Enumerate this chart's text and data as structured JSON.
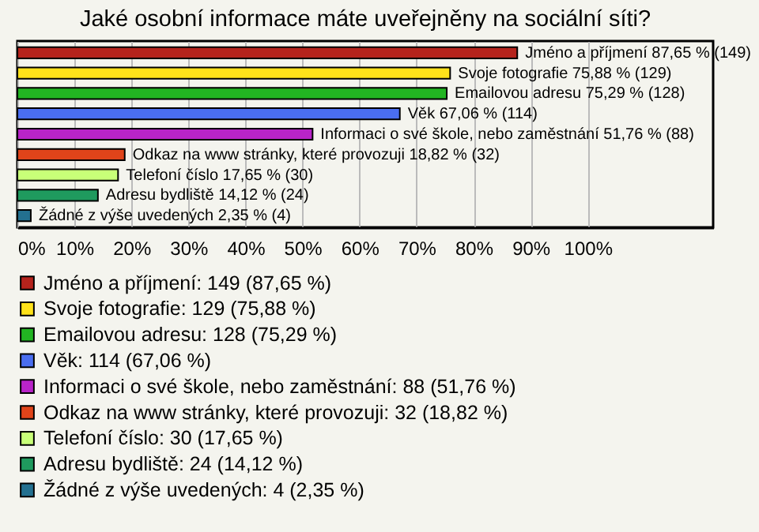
{
  "chart_data": {
    "type": "bar",
    "orientation": "horizontal",
    "title": "Jaké osobní informace máte uveřejněny na sociální síti?",
    "categories": [
      null,
      null,
      null,
      null,
      null,
      null,
      null,
      null,
      null
    ],
    "series": [
      {
        "name": "Jméno a příjmení: 149 (87,65 %)",
        "color": "#b5231c",
        "values": [
          87.65,
          null,
          null,
          null,
          null,
          null,
          null,
          null,
          null
        ],
        "value_labels": [
          "Jméno a příjmení 87,65 % (149)",
          null,
          null,
          null,
          null,
          null,
          null,
          null,
          null
        ]
      },
      {
        "name": "Svoje fotografie: 129 (75,88 %)",
        "color": "#ffe21a",
        "values": [
          null,
          75.88,
          null,
          null,
          null,
          null,
          null,
          null,
          null
        ],
        "value_labels": [
          null,
          "Svoje fotografie 75,88 % (129)",
          null,
          null,
          null,
          null,
          null,
          null,
          null
        ]
      },
      {
        "name": "Emailovou adresu: 128 (75,29 %)",
        "color": "#22b522",
        "values": [
          null,
          null,
          75.29,
          null,
          null,
          null,
          null,
          null,
          null
        ],
        "value_labels": [
          null,
          null,
          "Emailovou adresu 75,29 % (128)",
          null,
          null,
          null,
          null,
          null,
          null
        ]
      },
      {
        "name": "Věk: 114 (67,06 %)",
        "color": "#4a6ef0",
        "values": [
          null,
          null,
          null,
          67.06,
          null,
          null,
          null,
          null,
          null
        ],
        "value_labels": [
          null,
          null,
          null,
          "Věk 67,06 % (114)",
          null,
          null,
          null,
          null,
          null
        ]
      },
      {
        "name": "Informaci o své škole, nebo zaměstnání: 88 (51,76 %)",
        "color": "#b824c8",
        "values": [
          null,
          null,
          null,
          null,
          51.76,
          null,
          null,
          null,
          null
        ],
        "value_labels": [
          null,
          null,
          null,
          null,
          "Informaci o své škole, nebo zaměstnání 51,76 % (88)",
          null,
          null,
          null,
          null
        ]
      },
      {
        "name": "Odkaz na www stránky, které provozuji: 32 (18,82 %)",
        "color": "#e0441a",
        "values": [
          null,
          null,
          null,
          null,
          null,
          18.82,
          null,
          null,
          null
        ],
        "value_labels": [
          null,
          null,
          null,
          null,
          null,
          "Odkaz na www stránky, které provozuji 18,82 % (32)",
          null,
          null,
          null
        ]
      },
      {
        "name": "Telefoní číslo: 30 (17,65 %)",
        "color": "#c8ff78",
        "values": [
          null,
          null,
          null,
          null,
          null,
          null,
          17.65,
          null,
          null
        ],
        "value_labels": [
          null,
          null,
          null,
          null,
          null,
          null,
          "Telefoní číslo 17,65 % (30)",
          null,
          null
        ]
      },
      {
        "name": "Adresu bydliště: 24 (14,12 %)",
        "color": "#1f9a5e",
        "values": [
          null,
          null,
          null,
          null,
          null,
          null,
          null,
          14.12,
          null
        ],
        "value_labels": [
          null,
          null,
          null,
          null,
          null,
          null,
          null,
          "Adresu bydliště 14,12 % (24)",
          null
        ]
      },
      {
        "name": "Žádné z výše uvedených: 4 (2,35 %)",
        "color": "#237090",
        "values": [
          null,
          null,
          null,
          null,
          null,
          null,
          null,
          null,
          2.35
        ],
        "value_labels": [
          null,
          null,
          null,
          null,
          null,
          null,
          null,
          null,
          "Žádné z výše uvedených 2,35 % (4)"
        ]
      }
    ],
    "xlim": [
      0,
      122
    ],
    "xticks": [
      {
        "value": 0,
        "label": "0%"
      },
      {
        "value": 10,
        "label": "10%"
      },
      {
        "value": 20,
        "label": "20%"
      },
      {
        "value": 30,
        "label": "30%"
      },
      {
        "value": 40,
        "label": "40%"
      },
      {
        "value": 50,
        "label": "50%"
      },
      {
        "value": 60,
        "label": "60%"
      },
      {
        "value": 70,
        "label": "70%"
      },
      {
        "value": 80,
        "label": "80%"
      },
      {
        "value": 90,
        "label": "90%"
      },
      {
        "value": 100,
        "label": "100%"
      }
    ],
    "grid": "x",
    "legend": "bottom",
    "tick_labels": "x"
  }
}
